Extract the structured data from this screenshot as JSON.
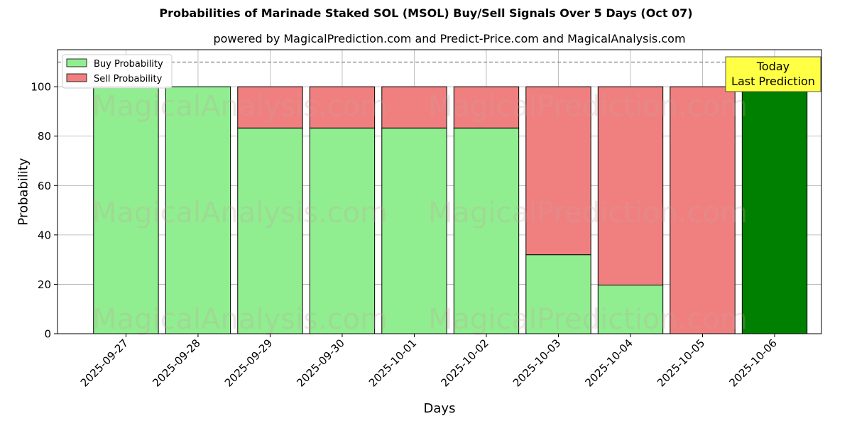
{
  "chart_data": {
    "type": "bar",
    "stacked": true,
    "title": "Probabilities of Marinade Staked SOL (MSOL) Buy/Sell Signals Over 5 Days (Oct 07)",
    "subtitle": "powered by MagicalPrediction.com and Predict-Price.com and MagicalAnalysis.com",
    "xlabel": "Days",
    "ylabel": "Probability",
    "ylim": [
      0,
      115
    ],
    "yticks": [
      0,
      20,
      40,
      60,
      80,
      100
    ],
    "categories": [
      "2025-09-27",
      "2025-09-28",
      "2025-09-29",
      "2025-09-30",
      "2025-10-01",
      "2025-10-02",
      "2025-10-03",
      "2025-10-04",
      "2025-10-05",
      "2025-10-06"
    ],
    "series": [
      {
        "name": "Buy Probability",
        "values": [
          100,
          100,
          83.3,
          83.3,
          83.3,
          83.3,
          32,
          19.7,
          0,
          100
        ]
      },
      {
        "name": "Sell Probability",
        "values": [
          0,
          0,
          16.7,
          16.7,
          16.7,
          16.7,
          68,
          80.3,
          100,
          0
        ]
      }
    ],
    "reference_line": 110,
    "grid": true,
    "legend_position": "top-left",
    "colors": {
      "buy": "#90ee90",
      "sell": "#f08080",
      "today": "#008000",
      "annotation_bg": "#ffff44"
    },
    "annotation": {
      "line1": "Today",
      "line2": "Last Prediction"
    },
    "watermarks": [
      "MagicalAnalysis.com",
      "MagicalPrediction.com"
    ]
  }
}
